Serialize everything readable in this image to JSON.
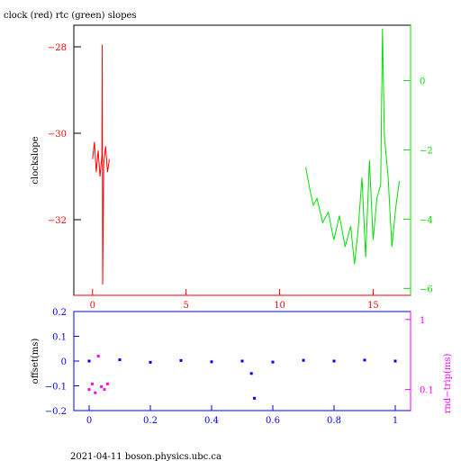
{
  "title": "clock (red) rtc (green) slopes",
  "footer": "2021-04-11 boson.physics.ubc.ca",
  "colors": {
    "clock": "#ff0000",
    "rtc": "#00e000",
    "offset": "#0000ff",
    "rndtrip": "#ff00ff",
    "axis": "#000000"
  },
  "chart_data": [
    {
      "type": "line",
      "title": "clock (red) rtc (green) slopes",
      "ylabel": "clockslope",
      "xlim": [
        -1,
        17
      ],
      "ylim": [
        -33.75,
        -27.5
      ],
      "y2lim": [
        -6.2,
        1.6
      ],
      "x_ticks": [
        0,
        5,
        10,
        15
      ],
      "y_ticks": [
        -28,
        -30,
        -32
      ],
      "y2_ticks": [
        0,
        -2,
        -4,
        -6
      ],
      "series": [
        {
          "name": "clock",
          "axis": "left",
          "color": "#ff0000",
          "x": [
            0.0,
            0.1,
            0.2,
            0.3,
            0.4,
            0.5,
            0.52,
            0.54,
            0.6,
            0.7,
            0.8,
            0.9
          ],
          "y": [
            -30.6,
            -30.2,
            -30.9,
            -30.4,
            -31.0,
            -30.5,
            -27.95,
            -33.5,
            -30.7,
            -30.3,
            -30.9,
            -30.6
          ]
        },
        {
          "name": "rtc",
          "axis": "right",
          "color": "#00e000",
          "x": [
            11.4,
            11.6,
            11.8,
            12.0,
            12.3,
            12.6,
            12.9,
            13.2,
            13.5,
            13.8,
            14.0,
            14.2,
            14.4,
            14.6,
            14.8,
            15.0,
            15.2,
            15.4,
            15.5,
            15.6,
            15.8,
            16.0,
            16.2,
            16.4
          ],
          "y": [
            -2.5,
            -3.1,
            -3.6,
            -3.4,
            -4.1,
            -3.8,
            -4.6,
            -3.9,
            -4.8,
            -4.2,
            -5.3,
            -4.3,
            -2.8,
            -5.1,
            -2.3,
            -4.6,
            -3.4,
            -3.0,
            1.5,
            -1.6,
            -2.8,
            -4.8,
            -3.7,
            -2.9
          ]
        }
      ]
    },
    {
      "type": "scatter",
      "ylabel": "offset(ms)",
      "y2label": "rnd−trip(ms)",
      "xlim": [
        -0.05,
        1.05
      ],
      "ylim": [
        -0.2,
        0.2
      ],
      "x_ticks": [
        0,
        0.2,
        0.4,
        0.6,
        0.8,
        1
      ],
      "y_ticks": [
        0.2,
        0.1,
        0,
        -0.1,
        -0.2
      ],
      "y2_ticks": [
        1,
        0.1
      ],
      "y2_scale": "log",
      "y2lim": [
        0.05,
        1.3
      ],
      "series": [
        {
          "name": "offset",
          "axis": "left",
          "color": "#0000ff",
          "x": [
            0.0,
            0.1,
            0.2,
            0.3,
            0.4,
            0.5,
            0.53,
            0.54,
            0.6,
            0.7,
            0.8,
            0.9,
            1.0
          ],
          "y": [
            0.0,
            0.005,
            -0.005,
            0.002,
            -0.003,
            0.0,
            -0.05,
            -0.15,
            -0.004,
            0.003,
            0.0,
            0.004,
            0.0
          ]
        },
        {
          "name": "rnd-trip",
          "axis": "right",
          "color": "#ff00ff",
          "x": [
            0.0,
            0.01,
            0.02,
            0.03,
            0.04,
            0.05,
            0.06
          ],
          "y": [
            0.1,
            0.12,
            0.09,
            0.3,
            0.11,
            0.1,
            0.12
          ]
        }
      ]
    }
  ]
}
